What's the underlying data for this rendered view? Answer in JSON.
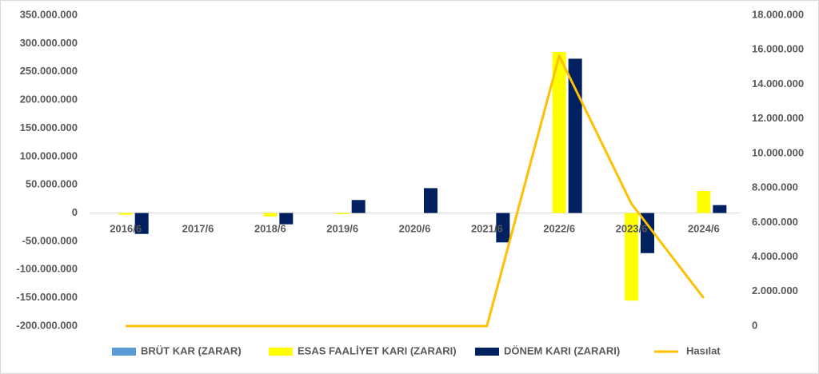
{
  "chart_data": {
    "type": "bar-line",
    "categories": [
      "2016/6",
      "2017/6",
      "2018/6",
      "2019/6",
      "2020/6",
      "2021/6",
      "2022/6",
      "2023/6",
      "2024/6"
    ],
    "series": [
      {
        "name": "BRÜT KAR (ZARAR)",
        "color": "#5b9bd5",
        "type": "bar",
        "values": [
          0,
          0,
          0,
          0,
          0,
          0,
          0,
          0,
          0
        ]
      },
      {
        "name": "ESAS FAALİYET KARI (ZARARI)",
        "color": "#ffff00",
        "type": "bar",
        "values": [
          -3000000,
          0,
          -6000000,
          -2000000,
          0,
          0,
          285000000,
          -155000000,
          39000000
        ]
      },
      {
        "name": "DÖNEM KARI (ZARARI)",
        "color": "#002060",
        "type": "bar",
        "values": [
          -37000000,
          0,
          -20000000,
          23000000,
          44000000,
          -52000000,
          273000000,
          -71000000,
          14000000
        ]
      },
      {
        "name": "Hasılat",
        "color": "#ffc000",
        "type": "line",
        "axis": "y2",
        "values": [
          0,
          0,
          0,
          0,
          0,
          0,
          15650000,
          7080000,
          1620000
        ]
      }
    ],
    "ylim": [
      -200000000,
      350000000
    ],
    "yticks": [
      {
        "value": -200000000,
        "label": "-200.000.000"
      },
      {
        "value": -150000000,
        "label": "-150.000.000"
      },
      {
        "value": -100000000,
        "label": "-100.000.000"
      },
      {
        "value": -50000000,
        "label": "-50.000.000"
      },
      0,
      {
        "value": 50000000,
        "label": "50.000.000"
      },
      {
        "value": 100000000,
        "label": "100.000.000"
      },
      {
        "value": 150000000,
        "label": "150.000.000"
      },
      {
        "value": 200000000,
        "label": "200.000.000"
      },
      {
        "value": 250000000,
        "label": "250.000.000"
      },
      {
        "value": 300000000,
        "label": "300.000.000"
      },
      {
        "value": 350000000,
        "label": "350.000.000"
      }
    ],
    "y2lim": [
      0,
      18000000
    ],
    "y2ticks": [
      0,
      {
        "value": 2000000,
        "label": "2.000.000"
      },
      {
        "value": 4000000,
        "label": "4.000.000"
      },
      {
        "value": 6000000,
        "label": "6.000.000"
      },
      {
        "value": 8000000,
        "label": "8.000.000"
      },
      {
        "value": 10000000,
        "label": "10.000.000"
      },
      {
        "value": 12000000,
        "label": "12.000.000"
      },
      {
        "value": 14000000,
        "label": "14.000.000"
      },
      {
        "value": 16000000,
        "label": "16.000.000"
      },
      {
        "value": 18000000,
        "label": "18.000.000"
      }
    ],
    "grid": false,
    "legend": "bottom"
  }
}
